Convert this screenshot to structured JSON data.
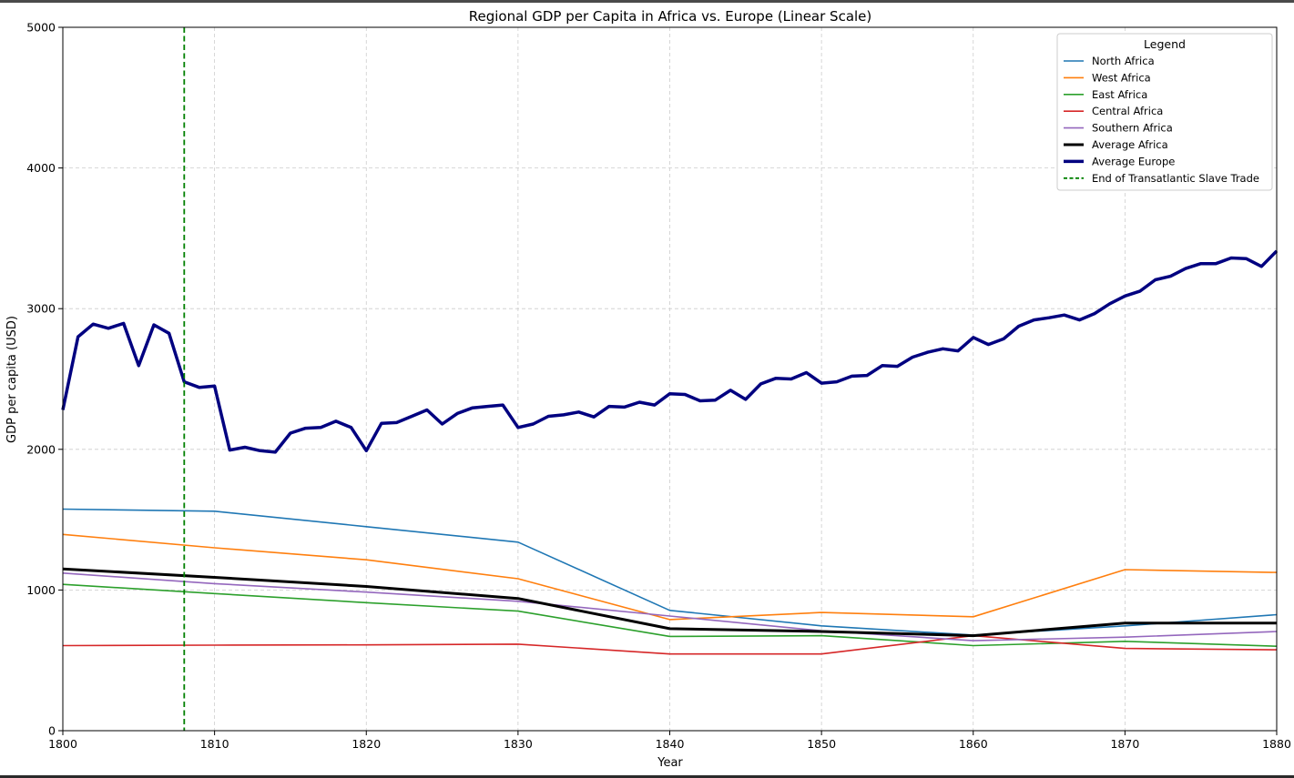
{
  "chart_data": {
    "type": "line",
    "title": "Regional GDP per Capita in Africa vs. Europe (Linear Scale)",
    "xlabel": "Year",
    "ylabel": "GDP per capita (USD)",
    "xlim": [
      1800,
      1880
    ],
    "ylim": [
      0,
      5000
    ],
    "xticks": [
      "1800",
      "1810",
      "1820",
      "1830",
      "1840",
      "1850",
      "1860",
      "1870",
      "1880"
    ],
    "yticks": [
      "0",
      "1000",
      "2000",
      "3000",
      "4000",
      "5000"
    ],
    "grid": true,
    "legend": {
      "title": "Legend",
      "placement": "top-right"
    },
    "series": [
      {
        "name": "North Africa",
        "color": "#1f77b4",
        "width": 1.6,
        "x": [
          1800,
          1810,
          1820,
          1830,
          1840,
          1850,
          1860,
          1870,
          1880
        ],
        "y": [
          1575,
          1560,
          1450,
          1340,
          855,
          745,
          680,
          745,
          825
        ]
      },
      {
        "name": "West Africa",
        "color": "#ff7f0e",
        "width": 1.6,
        "x": [
          1800,
          1810,
          1820,
          1830,
          1840,
          1850,
          1860,
          1870,
          1880
        ],
        "y": [
          1395,
          1300,
          1215,
          1080,
          790,
          840,
          810,
          1145,
          1125
        ]
      },
      {
        "name": "East Africa",
        "color": "#2ca02c",
        "width": 1.6,
        "x": [
          1800,
          1810,
          1820,
          1830,
          1840,
          1850,
          1860,
          1870,
          1880
        ],
        "y": [
          1040,
          975,
          910,
          850,
          670,
          675,
          605,
          635,
          600
        ]
      },
      {
        "name": "Central Africa",
        "color": "#d62728",
        "width": 1.6,
        "x": [
          1800,
          1810,
          1820,
          1830,
          1840,
          1850,
          1860,
          1870,
          1880
        ],
        "y": [
          605,
          608,
          610,
          615,
          545,
          545,
          675,
          585,
          575
        ]
      },
      {
        "name": "Southern Africa",
        "color": "#9467bd",
        "width": 1.6,
        "x": [
          1800,
          1810,
          1820,
          1830,
          1840,
          1850,
          1860,
          1870,
          1880
        ],
        "y": [
          1120,
          1045,
          985,
          920,
          815,
          710,
          640,
          665,
          705
        ]
      },
      {
        "name": "Average Africa",
        "color": "#000000",
        "width": 3,
        "x": [
          1800,
          1810,
          1820,
          1830,
          1840,
          1850,
          1860,
          1870,
          1880
        ],
        "y": [
          1150,
          1090,
          1025,
          940,
          725,
          705,
          675,
          765,
          765
        ]
      },
      {
        "name": "Average Europe",
        "color": "#000080",
        "width": 3.5,
        "x": [
          1800,
          1801,
          1802,
          1803,
          1804,
          1805,
          1806,
          1807,
          1808,
          1809,
          1810,
          1811,
          1812,
          1813,
          1814,
          1815,
          1816,
          1817,
          1818,
          1819,
          1820,
          1821,
          1822,
          1823,
          1824,
          1825,
          1826,
          1827,
          1828,
          1829,
          1830,
          1831,
          1832,
          1833,
          1834,
          1835,
          1836,
          1837,
          1838,
          1839,
          1840,
          1841,
          1842,
          1843,
          1844,
          1845,
          1846,
          1847,
          1848,
          1849,
          1850,
          1851,
          1852,
          1853,
          1854,
          1855,
          1856,
          1857,
          1858,
          1859,
          1860,
          1861,
          1862,
          1863,
          1864,
          1865,
          1866,
          1867,
          1868,
          1869,
          1870,
          1871,
          1872,
          1873,
          1874,
          1875,
          1876,
          1877,
          1878,
          1879,
          1880
        ],
        "y": [
          2280,
          2800,
          2890,
          2860,
          2895,
          2595,
          2885,
          2825,
          2480,
          2440,
          2450,
          1995,
          2015,
          1990,
          1980,
          2115,
          2150,
          2155,
          2200,
          2155,
          1990,
          2185,
          2190,
          2235,
          2280,
          2180,
          2255,
          2295,
          2305,
          2315,
          2155,
          2180,
          2235,
          2245,
          2265,
          2230,
          2305,
          2300,
          2335,
          2315,
          2395,
          2390,
          2345,
          2350,
          2420,
          2355,
          2465,
          2505,
          2500,
          2545,
          2470,
          2480,
          2520,
          2525,
          2595,
          2590,
          2655,
          2690,
          2715,
          2700,
          2795,
          2745,
          2785,
          2875,
          2920,
          2935,
          2955,
          2920,
          2965,
          3035,
          3090,
          3125,
          3205,
          3230,
          3285,
          3320,
          3320,
          3360,
          3355,
          3300,
          3410
        ]
      }
    ],
    "annotations": [
      {
        "type": "vline",
        "x": 1808,
        "label": "End of Transatlantic Slave Trade",
        "color": "#008000",
        "dashed": true
      }
    ]
  }
}
